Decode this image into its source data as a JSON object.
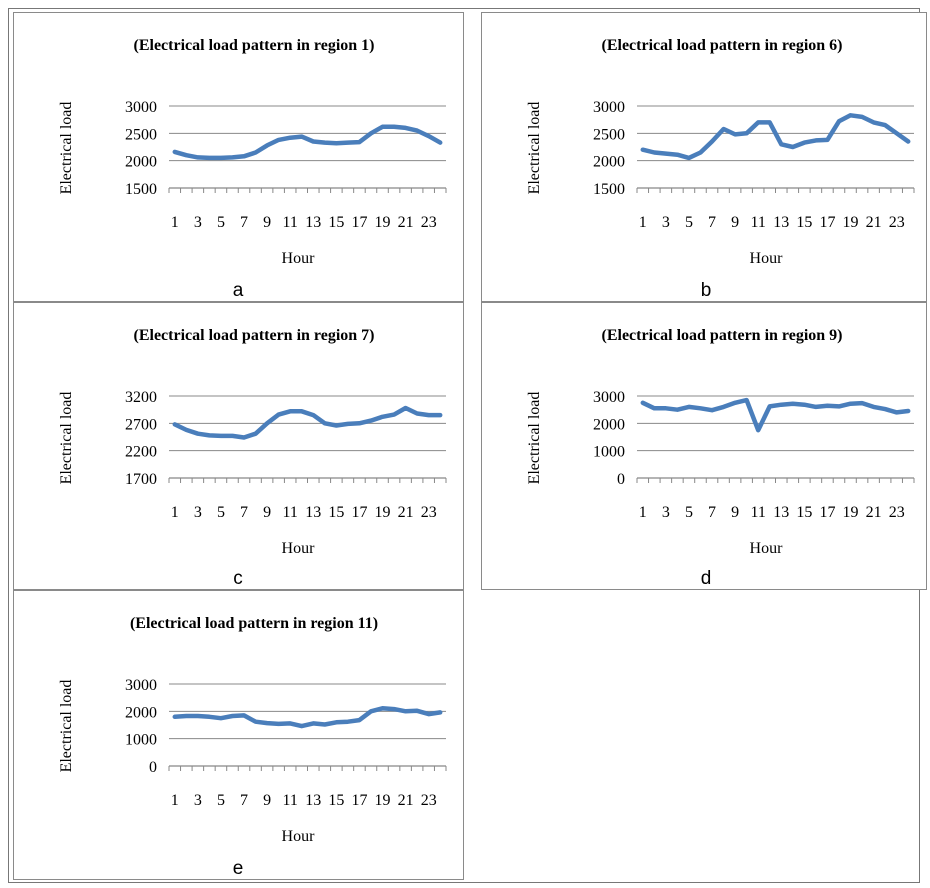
{
  "x_axis_tick_labels": [
    "1",
    "3",
    "5",
    "7",
    "9",
    "11",
    "13",
    "15",
    "17",
    "19",
    "21",
    "23"
  ],
  "series_color": "#4a7ebb",
  "gridline_color": "#888888",
  "chart_data": [
    {
      "type": "line",
      "panel_label": "a",
      "title": "(Electrical load pattern in region 1)",
      "xlabel": "Hour",
      "ylabel": "Electrical load",
      "x": [
        1,
        2,
        3,
        4,
        5,
        6,
        7,
        8,
        9,
        10,
        11,
        12,
        13,
        14,
        15,
        16,
        17,
        18,
        19,
        20,
        21,
        22,
        23,
        24
      ],
      "values": [
        2160,
        2100,
        2060,
        2050,
        2050,
        2060,
        2080,
        2150,
        2280,
        2380,
        2420,
        2440,
        2350,
        2330,
        2320,
        2330,
        2340,
        2500,
        2620,
        2620,
        2600,
        2550,
        2450,
        2330
      ],
      "yticks": [
        1500,
        2000,
        2500,
        3000
      ],
      "ylim": [
        1500,
        3000
      ],
      "grid": true
    },
    {
      "type": "line",
      "panel_label": "b",
      "title": "(Electrical load pattern in region 6)",
      "xlabel": "Hour",
      "ylabel": "Electrical load",
      "x": [
        1,
        2,
        3,
        4,
        5,
        6,
        7,
        8,
        9,
        10,
        11,
        12,
        13,
        14,
        15,
        16,
        17,
        18,
        19,
        20,
        21,
        22,
        23,
        24
      ],
      "values": [
        2200,
        2150,
        2130,
        2110,
        2050,
        2150,
        2350,
        2580,
        2480,
        2500,
        2700,
        2700,
        2300,
        2250,
        2330,
        2370,
        2380,
        2720,
        2830,
        2800,
        2700,
        2650,
        2500,
        2350
      ],
      "yticks": [
        1500,
        2000,
        2500,
        3000
      ],
      "ylim": [
        1500,
        3000
      ],
      "grid": true
    },
    {
      "type": "line",
      "panel_label": "c",
      "title": "(Electrical load pattern in region 7)",
      "xlabel": "Hour",
      "ylabel": "Electrical load",
      "x": [
        1,
        2,
        3,
        4,
        5,
        6,
        7,
        8,
        9,
        10,
        11,
        12,
        13,
        14,
        15,
        16,
        17,
        18,
        19,
        20,
        21,
        22,
        23,
        24
      ],
      "values": [
        2680,
        2580,
        2510,
        2480,
        2470,
        2470,
        2440,
        2510,
        2700,
        2860,
        2920,
        2920,
        2850,
        2700,
        2660,
        2690,
        2700,
        2750,
        2820,
        2860,
        2980,
        2880,
        2850,
        2850
      ],
      "yticks": [
        1700,
        2200,
        2700,
        3200
      ],
      "ylim": [
        1700,
        3200
      ],
      "grid": true
    },
    {
      "type": "line",
      "panel_label": "d",
      "title": "(Electrical load pattern in region 9)",
      "xlabel": "Hour",
      "ylabel": "Electrical load",
      "x": [
        1,
        2,
        3,
        4,
        5,
        6,
        7,
        8,
        9,
        10,
        11,
        12,
        13,
        14,
        15,
        16,
        17,
        18,
        19,
        20,
        21,
        22,
        23,
        24
      ],
      "values": [
        2750,
        2550,
        2550,
        2500,
        2600,
        2550,
        2480,
        2600,
        2750,
        2850,
        1750,
        2620,
        2680,
        2720,
        2680,
        2600,
        2640,
        2620,
        2720,
        2740,
        2600,
        2520,
        2400,
        2450
      ],
      "yticks": [
        0,
        1000,
        2000,
        3000
      ],
      "ylim": [
        0,
        3000
      ],
      "grid": true
    },
    {
      "type": "line",
      "panel_label": "e",
      "title": "(Electrical load pattern in region 11)",
      "xlabel": "Hour",
      "ylabel": "Electrical load",
      "x": [
        1,
        2,
        3,
        4,
        5,
        6,
        7,
        8,
        9,
        10,
        11,
        12,
        13,
        14,
        15,
        16,
        17,
        18,
        19,
        20,
        21,
        22,
        23,
        24
      ],
      "values": [
        1800,
        1830,
        1830,
        1800,
        1750,
        1830,
        1850,
        1620,
        1570,
        1540,
        1560,
        1460,
        1560,
        1520,
        1600,
        1620,
        1680,
        2000,
        2110,
        2080,
        2000,
        2020,
        1900,
        1960
      ],
      "yticks": [
        0,
        1000,
        2000,
        3000
      ],
      "ylim": [
        0,
        3000
      ],
      "grid": true
    }
  ]
}
